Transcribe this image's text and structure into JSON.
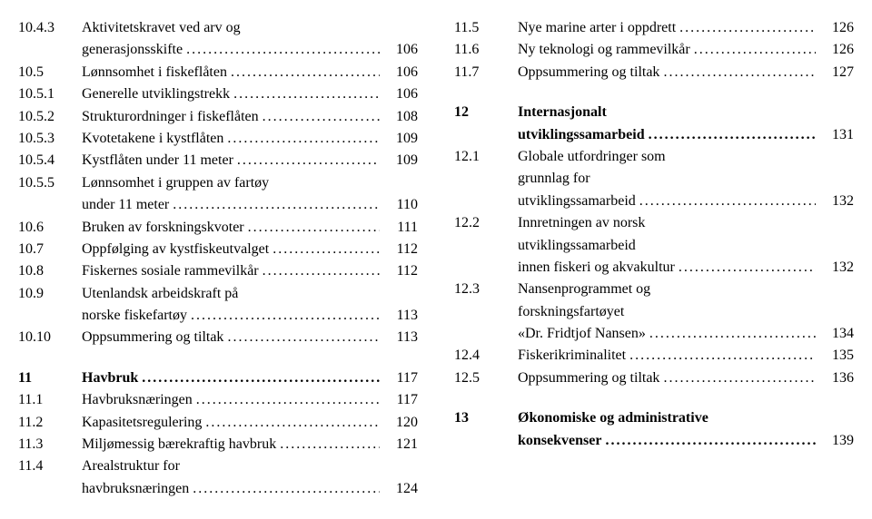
{
  "left": [
    {
      "num": "10.4.3",
      "text": "Aktivitetskravet ved arv og",
      "cont": true
    },
    {
      "num": "",
      "text": "generasjonsskifte",
      "page": "106"
    },
    {
      "num": "10.5",
      "text": "Lønnsomhet i fiskeflåten",
      "page": "106"
    },
    {
      "num": "10.5.1",
      "text": "Generelle utviklingstrekk",
      "page": "106"
    },
    {
      "num": "10.5.2",
      "text": "Strukturordninger i fiskeflåten",
      "page": "108"
    },
    {
      "num": "10.5.3",
      "text": "Kvotetakene i kystflåten",
      "page": "109"
    },
    {
      "num": "10.5.4",
      "text": "Kystflåten under 11 meter",
      "page": "109"
    },
    {
      "num": "10.5.5",
      "text": "Lønnsomhet i gruppen av fartøy",
      "cont": true
    },
    {
      "num": "",
      "text": "under 11 meter",
      "page": "110"
    },
    {
      "num": "10.6",
      "text": "Bruken av forskningskvoter",
      "page": "111"
    },
    {
      "num": "10.7",
      "text": "Oppfølging av kystfiskeutvalget",
      "page": "112"
    },
    {
      "num": "10.8",
      "text": "Fiskernes sosiale rammevilkår",
      "page": "112"
    },
    {
      "num": "10.9",
      "text": "Utenlandsk arbeidskraft på",
      "cont": true
    },
    {
      "num": "",
      "text": "norske fiskefartøy",
      "page": "113"
    },
    {
      "num": "10.10",
      "text": "Oppsummering og tiltak",
      "page": "113"
    },
    {
      "spacer": true
    },
    {
      "num": "11",
      "text": "Havbruk",
      "page": "117",
      "bold": true
    },
    {
      "num": "11.1",
      "text": "Havbruksnæringen",
      "page": "117"
    },
    {
      "num": "11.2",
      "text": "Kapasitetsregulering",
      "page": "120"
    },
    {
      "num": "11.3",
      "text": "Miljømessig bærekraftig havbruk",
      "page": "121"
    },
    {
      "num": "11.4",
      "text": "Arealstruktur for",
      "cont": true
    },
    {
      "num": "",
      "text": "havbruksnæringen",
      "page": "124"
    }
  ],
  "right": [
    {
      "num": "11.5",
      "text": "Nye marine arter i oppdrett",
      "page": "126"
    },
    {
      "num": "11.6",
      "text": "Ny teknologi og rammevilkår",
      "page": "126"
    },
    {
      "num": "11.7",
      "text": "Oppsummering og tiltak",
      "page": "127"
    },
    {
      "spacer": true
    },
    {
      "num": "12",
      "text": "Internasjonalt",
      "bold": true,
      "cont": true
    },
    {
      "num": "",
      "text": "utviklingssamarbeid",
      "page": "131",
      "bold": true
    },
    {
      "num": "12.1",
      "text": "Globale utfordringer som",
      "cont": true
    },
    {
      "num": "",
      "text": "grunnlag for",
      "cont": true
    },
    {
      "num": "",
      "text": "utviklingssamarbeid",
      "page": "132"
    },
    {
      "num": "12.2",
      "text": "Innretningen av norsk",
      "cont": true
    },
    {
      "num": "",
      "text": "utviklingssamarbeid",
      "cont": true
    },
    {
      "num": "",
      "text": "innen fiskeri og akvakultur",
      "page": "132"
    },
    {
      "num": "12.3",
      "text": "Nansenprogrammet og",
      "cont": true
    },
    {
      "num": "",
      "text": "forskningsfartøyet",
      "cont": true
    },
    {
      "num": "",
      "text": "«Dr. Fridtjof Nansen»",
      "page": "134"
    },
    {
      "num": "12.4",
      "text": "Fiskerikriminalitet",
      "page": "135"
    },
    {
      "num": "12.5",
      "text": "Oppsummering og tiltak",
      "page": "136"
    },
    {
      "spacer": true
    },
    {
      "num": "13",
      "text": "Økonomiske og administrative",
      "bold": true,
      "cont": true
    },
    {
      "num": "",
      "text": "konsekvenser",
      "page": "139",
      "bold": true
    }
  ]
}
